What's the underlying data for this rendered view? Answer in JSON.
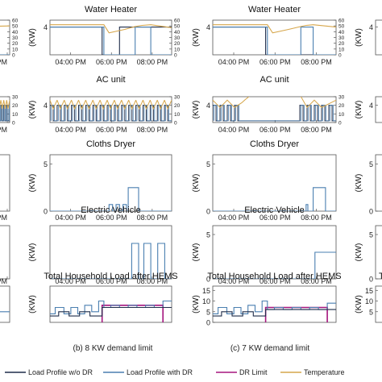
{
  "panel_captions": [
    "(b) 8 KW demand limit",
    "(c) 7 KW demand limit"
  ],
  "legend": [
    {
      "label": "Load Profile w/o DR",
      "color": "#1f2d4a"
    },
    {
      "label": "Load Profile with DR",
      "color": "#4a7fb0"
    },
    {
      "label": "DR Limit",
      "color": "#a5157e"
    },
    {
      "label": "Temperature",
      "color": "#d6a64b"
    }
  ],
  "colors": {
    "without_dr": "#1f2d4a",
    "with_dr": "#4a7fb0",
    "dr_limit": "#a5157e",
    "temperature": "#d6a64b"
  },
  "chart_data": [
    {
      "id": "b-water-heater",
      "column": "b",
      "row": 0,
      "type": "line",
      "title": "Water Heater",
      "ylabel": "(KW)",
      "ylabel_right": "",
      "xtick_labels": [
        "04:00 PM",
        "06:00 PM",
        "08:00 PM"
      ],
      "xlim": [
        14.5,
        21.5
      ],
      "ylim": [
        0,
        5
      ],
      "yticks": [
        4
      ],
      "ylim_right": [
        0,
        60
      ],
      "yticks_right": [
        0,
        10,
        20,
        30,
        40,
        50,
        60
      ],
      "series": [
        {
          "role": "without_dr",
          "x": [
            14.5,
            17.5,
            17.5,
            18.5,
            18.5,
            21.5
          ],
          "y": [
            4,
            4,
            0,
            0,
            4,
            4
          ]
        },
        {
          "role": "with_dr",
          "x": [
            14.5,
            17.6,
            17.6,
            19.4,
            19.4,
            20.3,
            20.3,
            21.5
          ],
          "y": [
            4,
            4,
            0,
            0,
            4,
            4,
            0,
            0
          ]
        },
        {
          "role": "temperature",
          "axis": "right",
          "x": [
            14.5,
            17.6,
            17.9,
            18.8,
            19.4,
            19.8,
            20.3,
            21.5
          ],
          "y": [
            52,
            52,
            38,
            44,
            49,
            51,
            52,
            47
          ]
        }
      ]
    },
    {
      "id": "b-ac-unit",
      "column": "b",
      "row": 1,
      "type": "line",
      "title": "AC unit",
      "ylabel": "(KW)",
      "ylabel_right": "",
      "xtick_labels": [
        "04:00 PM",
        "06:00 PM",
        "08:00 PM"
      ],
      "xlim": [
        14.5,
        21.5
      ],
      "ylim": [
        0,
        6
      ],
      "yticks": [
        4
      ],
      "ylim_right": [
        0,
        30
      ],
      "yticks_right": [
        0,
        10,
        20,
        30
      ],
      "pattern": "cycling",
      "series": [
        {
          "role": "without_dr",
          "x": [
            14.5,
            21.5
          ],
          "y": [
            0,
            0
          ]
        },
        {
          "role": "with_dr",
          "x": [
            14.5,
            21.5
          ],
          "y": [
            0,
            0
          ]
        },
        {
          "role": "temperature",
          "axis": "right",
          "x": [
            14.5,
            21.5
          ],
          "y": [
            0,
            0
          ]
        }
      ]
    },
    {
      "id": "b-cloths-dryer",
      "column": "b",
      "row": 2,
      "type": "line",
      "title": "Cloths Dryer",
      "ylabel": "(KW)",
      "xtick_labels": [
        "04:00 PM",
        "06:00 PM",
        "08:00 PM"
      ],
      "xlim": [
        14.5,
        21.5
      ],
      "ylim": [
        0,
        6
      ],
      "yticks": [
        0,
        5
      ],
      "series": [
        {
          "role": "with_dr",
          "x": [
            14.5,
            17.9,
            17.9,
            18.1,
            18.1,
            18.3,
            18.3,
            18.5,
            18.5,
            18.7,
            18.7,
            18.9,
            18.9,
            19.0,
            19.0,
            19.6,
            19.6,
            21.5
          ],
          "y": [
            0,
            0,
            0.7,
            0.7,
            0,
            0,
            0.7,
            0.7,
            0,
            0,
            0.7,
            0.7,
            0,
            0,
            2.5,
            2.5,
            0,
            0
          ]
        }
      ]
    },
    {
      "id": "b-electric-vehicle",
      "column": "b",
      "row": 3,
      "type": "line",
      "title": "Electric Vehicle",
      "ylabel": "(KW)",
      "xtick_labels": [
        "04:00 PM",
        "06:00 PM",
        "08:00 PM"
      ],
      "xlim": [
        14.5,
        21.5
      ],
      "ylim": [
        0,
        4.5
      ],
      "yticks": [],
      "series": [
        {
          "role": "with_dr",
          "x": [
            14.5,
            19.2,
            19.2,
            19.6,
            19.6,
            19.9,
            19.9,
            20.3,
            20.3,
            20.7,
            20.7,
            21.1,
            21.1,
            21.5
          ],
          "y": [
            0,
            0,
            3,
            3,
            0,
            0,
            3,
            3,
            0,
            0,
            3,
            3,
            0,
            0
          ]
        }
      ]
    },
    {
      "id": "b-total-load",
      "column": "b",
      "row": 4,
      "type": "line",
      "title": "Total Household Load after HEMS",
      "ylabel": "(KW)",
      "xtick_labels": [
        "04:00 PM",
        "06:00 PM",
        "08:00 PM"
      ],
      "xlim": [
        14.5,
        21.5
      ],
      "ylim": [
        0,
        17
      ],
      "yticks": [],
      "series": [
        {
          "role": "dr_limit",
          "x": [
            17.5,
            17.5,
            21.0,
            21.0
          ],
          "y": [
            0,
            8,
            8,
            0
          ]
        },
        {
          "role": "with_dr",
          "x": [
            14.5,
            14.8,
            14.8,
            15.3,
            15.3,
            15.7,
            15.7,
            16.1,
            16.1,
            16.5,
            16.5,
            16.9,
            16.9,
            17.3,
            17.3,
            17.6,
            17.6,
            18.0,
            18.0,
            18.5,
            18.5,
            19.0,
            19.0,
            19.5,
            19.5,
            20.0,
            20.0,
            20.5,
            20.5,
            21.0,
            21.0,
            21.5
          ],
          "y": [
            4,
            4,
            7,
            7,
            4,
            4,
            7,
            7,
            4,
            4,
            8,
            8,
            5,
            5,
            10,
            10,
            7,
            7,
            8,
            8,
            7,
            7,
            8,
            8,
            7,
            7,
            8,
            8,
            7,
            7,
            10,
            10
          ]
        },
        {
          "role": "without_dr",
          "x": [
            14.5,
            15.0,
            15.0,
            15.6,
            15.6,
            16.2,
            16.2,
            16.8,
            16.8,
            17.5,
            17.5,
            21.5
          ],
          "y": [
            3,
            3,
            5,
            5,
            3,
            3,
            5,
            5,
            3,
            3,
            7,
            7
          ]
        }
      ]
    },
    {
      "id": "c-water-heater",
      "column": "c",
      "row": 0,
      "type": "line",
      "title": "Water Heater",
      "ylabel": "(KW)",
      "ylabel_right": "",
      "xtick_labels": [
        "04:00 PM",
        "06:00 PM",
        "08:00 PM"
      ],
      "xlim": [
        14.5,
        21.5
      ],
      "ylim": [
        0,
        5
      ],
      "yticks": [
        4
      ],
      "ylim_right": [
        0,
        60
      ],
      "yticks_right": [
        0,
        10,
        20,
        30,
        40,
        50,
        60
      ],
      "series": [
        {
          "role": "without_dr",
          "x": [
            14.5,
            17.5,
            17.5,
            21.5
          ],
          "y": [
            4,
            4,
            0,
            0
          ]
        },
        {
          "role": "with_dr",
          "x": [
            14.5,
            17.6,
            17.6,
            19.5,
            19.5,
            20.2,
            20.2,
            21.5
          ],
          "y": [
            4,
            4,
            0,
            0,
            4,
            4,
            0,
            0
          ]
        },
        {
          "role": "temperature",
          "axis": "right",
          "x": [
            14.5,
            17.6,
            17.9,
            18.8,
            19.5,
            19.8,
            20.2,
            21.5
          ],
          "y": [
            52,
            52,
            38,
            44,
            49,
            51,
            52,
            48
          ]
        }
      ]
    },
    {
      "id": "c-ac-unit",
      "column": "c",
      "row": 1,
      "type": "line",
      "title": "AC unit",
      "ylabel": "(KW)",
      "ylabel_right": "",
      "xtick_labels": [
        "04:00 PM",
        "06:00 PM",
        "08:00 PM"
      ],
      "xlim": [
        14.5,
        21.5
      ],
      "ylim": [
        0,
        6
      ],
      "yticks": [
        4
      ],
      "ylim_right": [
        0,
        30
      ],
      "yticks_right": [
        0,
        10,
        20,
        30
      ],
      "pattern": "curve",
      "series": [
        {
          "role": "without_dr",
          "x": [
            14.5,
            21.5
          ],
          "y": [
            0,
            0
          ]
        },
        {
          "role": "with_dr",
          "x": [
            14.5,
            21.5
          ],
          "y": [
            0,
            0
          ]
        },
        {
          "role": "temperature",
          "axis": "right",
          "x": [
            14.5,
            21.5
          ],
          "y": [
            0,
            0
          ]
        }
      ]
    },
    {
      "id": "c-cloths-dryer",
      "column": "c",
      "row": 2,
      "type": "line",
      "title": "Cloths Dryer",
      "ylabel": "(KW)",
      "xtick_labels": [
        "04:00 PM",
        "06:00 PM",
        "08:00 PM"
      ],
      "xlim": [
        14.5,
        21.5
      ],
      "ylim": [
        0,
        6
      ],
      "yticks": [
        0,
        5
      ],
      "series": [
        {
          "role": "with_dr",
          "x": [
            14.5,
            19.8,
            19.8,
            19.9,
            19.9,
            20.2,
            20.2,
            20.9,
            20.9,
            21.5
          ],
          "y": [
            0,
            0,
            0.7,
            0.7,
            0,
            0,
            2.5,
            2.5,
            0,
            0
          ]
        }
      ]
    },
    {
      "id": "c-electric-vehicle",
      "column": "c",
      "row": 3,
      "type": "line",
      "title": "Electric Vehicle",
      "ylabel": "(KW)",
      "xtick_labels": [
        "04:00 PM",
        "06:00 PM",
        "08:00 PM"
      ],
      "xlim": [
        14.5,
        21.5
      ],
      "ylim": [
        0,
        6
      ],
      "yticks": [
        0,
        5
      ],
      "series": [
        {
          "role": "with_dr",
          "x": [
            14.5,
            20.3,
            20.3,
            21.5
          ],
          "y": [
            0,
            0,
            3,
            3
          ]
        }
      ]
    },
    {
      "id": "c-total-load",
      "column": "c",
      "row": 4,
      "type": "line",
      "title": "Total Household Load after HEMS",
      "ylabel": "(KW)",
      "xtick_labels": [
        "04:00 PM",
        "06:00 PM",
        "08:00 PM"
      ],
      "xlim": [
        14.5,
        21.5
      ],
      "ylim": [
        0,
        17
      ],
      "yticks": [
        0,
        5,
        10,
        15
      ],
      "series": [
        {
          "role": "dr_limit",
          "x": [
            17.5,
            17.5,
            21.0,
            21.0
          ],
          "y": [
            0,
            7,
            7,
            0
          ]
        },
        {
          "role": "with_dr",
          "x": [
            14.5,
            14.8,
            14.8,
            15.3,
            15.3,
            15.7,
            15.7,
            16.1,
            16.1,
            16.5,
            16.5,
            16.9,
            16.9,
            17.3,
            17.3,
            17.6,
            17.6,
            18.0,
            18.0,
            18.5,
            18.5,
            19.0,
            19.0,
            19.5,
            19.5,
            20.0,
            20.0,
            20.5,
            20.5,
            21.0,
            21.0,
            21.5
          ],
          "y": [
            4,
            4,
            7,
            7,
            4,
            4,
            7,
            7,
            4,
            4,
            8,
            8,
            5,
            5,
            10,
            10,
            6,
            6,
            7,
            7,
            6,
            6,
            7,
            7,
            6,
            6,
            7,
            7,
            6,
            6,
            9,
            9
          ]
        },
        {
          "role": "without_dr",
          "x": [
            14.5,
            15.0,
            15.0,
            15.6,
            15.6,
            16.2,
            16.2,
            16.8,
            16.8,
            17.5,
            17.5,
            21.5
          ],
          "y": [
            3,
            3,
            5,
            5,
            3,
            3,
            5,
            5,
            3,
            3,
            6,
            6
          ]
        }
      ]
    },
    {
      "id": "a-partial-row0",
      "column": "a",
      "row": 0,
      "type": "line",
      "partial": true,
      "title": "",
      "ylabel": "",
      "ylabel_right": "",
      "xtick_labels": [
        "0 PM"
      ],
      "xlim": [
        20.7,
        21.5
      ],
      "ylim": [
        0,
        5
      ],
      "ylim_right": [
        0,
        60
      ],
      "yticks_right": [
        0,
        10,
        20,
        30,
        40,
        50,
        60
      ],
      "series": [
        {
          "role": "with_dr",
          "x": [
            20.7,
            21.0,
            21.0,
            21.5
          ],
          "y": [
            4,
            4,
            0,
            0
          ]
        },
        {
          "role": "temperature",
          "axis": "right",
          "x": [
            20.7,
            21.5
          ],
          "y": [
            48,
            50
          ]
        }
      ]
    },
    {
      "id": "a-partial-row1",
      "column": "a",
      "row": 1,
      "type": "line",
      "partial": true,
      "title": "",
      "ylabel": "",
      "ylabel_right": "",
      "xtick_labels": [
        "0 PM"
      ],
      "xlim": [
        20.7,
        21.5
      ],
      "ylim": [
        0,
        6
      ],
      "ylim_right": [
        0,
        30
      ],
      "yticks_right": [
        0,
        10,
        20,
        30
      ],
      "pattern": "cycling",
      "series": [
        {
          "role": "with_dr",
          "x": [
            20.7,
            21.5
          ],
          "y": [
            0,
            0
          ]
        }
      ]
    },
    {
      "id": "a-partial-row2",
      "column": "a",
      "row": 2,
      "type": "line",
      "partial": true,
      "title": "",
      "ylabel": "",
      "xtick_labels": [
        "0 PM"
      ],
      "xlim": [
        20.7,
        21.5
      ],
      "ylim": [
        0,
        6
      ],
      "series": []
    },
    {
      "id": "a-partial-row3",
      "column": "a",
      "row": 3,
      "type": "line",
      "partial": true,
      "title": "",
      "ylabel": "",
      "xtick_labels": [
        "0 PM"
      ],
      "xlim": [
        20.7,
        21.5
      ],
      "ylim": [
        0,
        6
      ],
      "series": []
    },
    {
      "id": "a-partial-row4",
      "column": "a",
      "row": 4,
      "type": "line",
      "partial": true,
      "title": "",
      "ylabel": "",
      "xtick_labels": [],
      "xlim": [
        20.7,
        21.5
      ],
      "ylim": [
        0,
        17
      ],
      "series": [
        {
          "role": "with_dr",
          "x": [
            20.7,
            21.0,
            21.0,
            21.2,
            21.2,
            21.5
          ],
          "y": [
            6,
            6,
            9,
            9,
            5,
            5
          ]
        }
      ]
    },
    {
      "id": "d-partial-row0",
      "column": "d",
      "row": 0,
      "type": "line",
      "partial": true,
      "title": "",
      "ylabel": "(KW)",
      "xtick_labels": [],
      "xlim": [
        14.5,
        15.0
      ],
      "ylim": [
        0,
        5
      ],
      "yticks": [
        4
      ],
      "series": []
    },
    {
      "id": "d-partial-row1",
      "column": "d",
      "row": 1,
      "type": "line",
      "partial": true,
      "title": "",
      "ylabel": "(KW)",
      "xtick_labels": [],
      "xlim": [
        14.5,
        15.0
      ],
      "ylim": [
        0,
        6
      ],
      "yticks": [
        4
      ],
      "series": []
    },
    {
      "id": "d-partial-row2",
      "column": "d",
      "row": 2,
      "type": "line",
      "partial": true,
      "title": "",
      "ylabel": "(KW)",
      "xtick_labels": [],
      "xlim": [
        14.5,
        15.0
      ],
      "ylim": [
        0,
        6
      ],
      "yticks": [
        0,
        5
      ],
      "series": []
    },
    {
      "id": "d-partial-row3",
      "column": "d",
      "row": 3,
      "type": "line",
      "partial": true,
      "title": "",
      "ylabel": "(KW)",
      "xtick_labels": [],
      "xlim": [
        14.5,
        15.0
      ],
      "ylim": [
        0,
        6
      ],
      "yticks": [
        0,
        5
      ],
      "series": []
    },
    {
      "id": "d-partial-row4",
      "column": "d",
      "row": 4,
      "type": "line",
      "partial": true,
      "title": "Tot",
      "ylabel": "(KW)",
      "xtick_labels": [],
      "xlim": [
        14.5,
        15.0
      ],
      "ylim": [
        0,
        17
      ],
      "yticks": [
        5,
        10,
        15
      ],
      "series": []
    }
  ]
}
